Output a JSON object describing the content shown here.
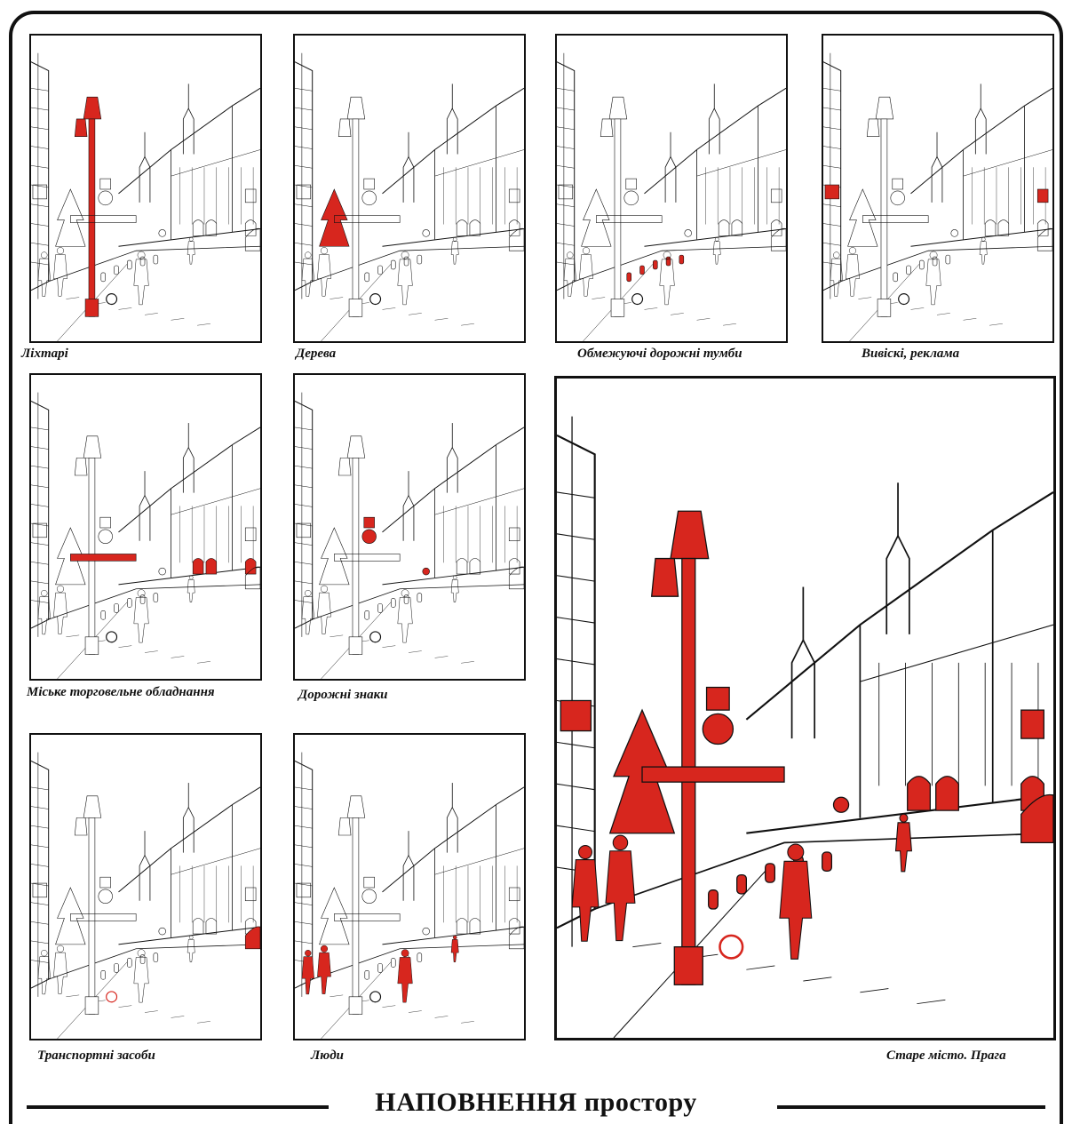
{
  "title": "НАПОВНЕННЯ простору",
  "highlight_color": "#d7261e",
  "line_color": "#111111",
  "panels": [
    {
      "id": "lamps",
      "caption": "Ліхтарі",
      "highlight": "lamps"
    },
    {
      "id": "trees",
      "caption": "Дерева",
      "highlight": "trees"
    },
    {
      "id": "bollards",
      "caption": "Обмежуючі дорожні тумби",
      "highlight": "bollards"
    },
    {
      "id": "signs",
      "caption": "Вивіскі, реклама",
      "highlight": "signage"
    },
    {
      "id": "retail",
      "caption": "Міське торговельне  обладнання",
      "highlight": "retail"
    },
    {
      "id": "roadsigns",
      "caption": "Дорожні знаки",
      "highlight": "road-signs"
    },
    {
      "id": "vehicles",
      "caption": "Транспортні засоби",
      "highlight": "vehicles"
    },
    {
      "id": "people",
      "caption": "Люди",
      "highlight": "people"
    }
  ],
  "main": {
    "caption": "Старе місто. Прага",
    "highlight": "all"
  }
}
